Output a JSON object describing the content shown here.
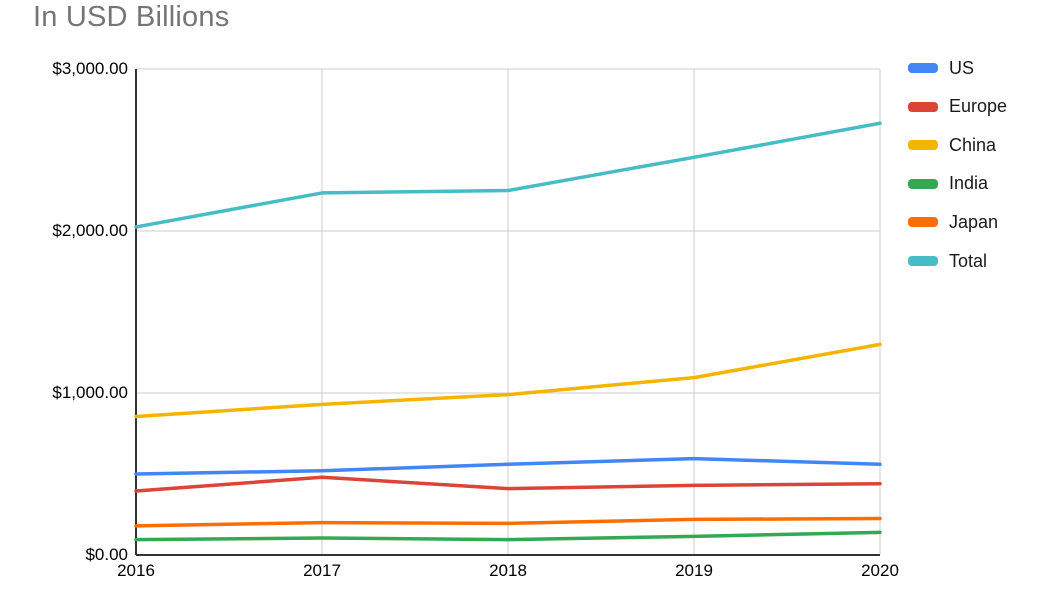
{
  "chart_data": {
    "type": "line",
    "title": "In USD Billions",
    "x_labels": [
      "2016",
      "2017",
      "2018",
      "2019",
      "2020"
    ],
    "ylim": [
      0,
      3000
    ],
    "grid": true,
    "legend_position": "right",
    "y_ticks": [
      {
        "value": 0,
        "label": "$0.00"
      },
      {
        "value": 1000,
        "label": "$1,000.00"
      },
      {
        "value": 2000,
        "label": "$2,000.00"
      },
      {
        "value": 3000,
        "label": "$3,000.00"
      }
    ],
    "series": [
      {
        "name": "US",
        "color": "#4285F4",
        "values": [
          500,
          520,
          560,
          595,
          560
        ]
      },
      {
        "name": "Europe",
        "color": "#DB4437",
        "values": [
          395,
          480,
          410,
          430,
          440
        ]
      },
      {
        "name": "China",
        "color": "#F4B400",
        "values": [
          855,
          930,
          990,
          1095,
          1300
        ]
      },
      {
        "name": "India",
        "color": "#34A853",
        "values": [
          95,
          105,
          95,
          115,
          140
        ]
      },
      {
        "name": "Japan",
        "color": "#FF6D01",
        "values": [
          180,
          200,
          195,
          220,
          225
        ]
      },
      {
        "name": "Total",
        "color": "#46BDC6",
        "values": [
          2025,
          2235,
          2250,
          2455,
          2665
        ]
      }
    ],
    "colors": {
      "title": "#757575",
      "gridline": "#cccccc",
      "axis": "#333333",
      "tick_text": "#000000"
    }
  }
}
